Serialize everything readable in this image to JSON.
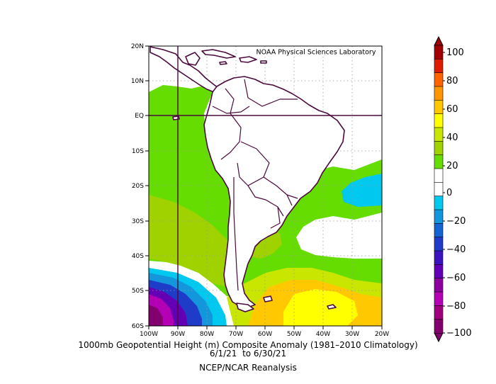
{
  "map": {
    "lon_range": [
      "100W",
      "20W"
    ],
    "lat_range": [
      "60S",
      "20N"
    ],
    "lon_ticks": [
      "100W",
      "90W",
      "80W",
      "70W",
      "60W",
      "50W",
      "40W",
      "30W",
      "20W"
    ],
    "lat_ticks": [
      "20N",
      "10N",
      "EQ",
      "10S",
      "20S",
      "30S",
      "40S",
      "50S",
      "60S"
    ],
    "credit": "NOAA Physical Sciences Laboratory",
    "grid": "dotted",
    "anomaly_regions": [
      {
        "name": "pacific-positive-band",
        "level": 20,
        "color": "#66dd00"
      },
      {
        "name": "southwest-pacific-low",
        "level": -100,
        "color": "#800080"
      },
      {
        "name": "south-atlantic-high",
        "level": 60,
        "color": "#ffff00"
      },
      {
        "name": "southeast-brazil-coast-low",
        "level": -20,
        "color": "#00c8ee"
      }
    ]
  },
  "colorbar": {
    "labels": [
      "100",
      "80",
      "60",
      "40",
      "20",
      "0",
      "−20",
      "−40",
      "−60",
      "−80",
      "−100"
    ],
    "colors": [
      "#a00000",
      "#dd1c00",
      "#ff6400",
      "#ff9600",
      "#ffc800",
      "#ffff00",
      "#c8e600",
      "#a0d200",
      "#66dd00",
      "#ffffff",
      "#ffffff",
      "#00c8ee",
      "#1496dc",
      "#1464d2",
      "#1e3cc8",
      "#3c14be",
      "#6400b4",
      "#8c00a0",
      "#b400b4",
      "#a0007d",
      "#82006e"
    ]
  },
  "caption": {
    "line1": "1000mb Geopotential Height (m) Composite Anomaly (1981–2010 Climatology)",
    "line2": "6/1/21  to 6/30/21",
    "line3": "NCEP/NCAR Reanalysis"
  }
}
